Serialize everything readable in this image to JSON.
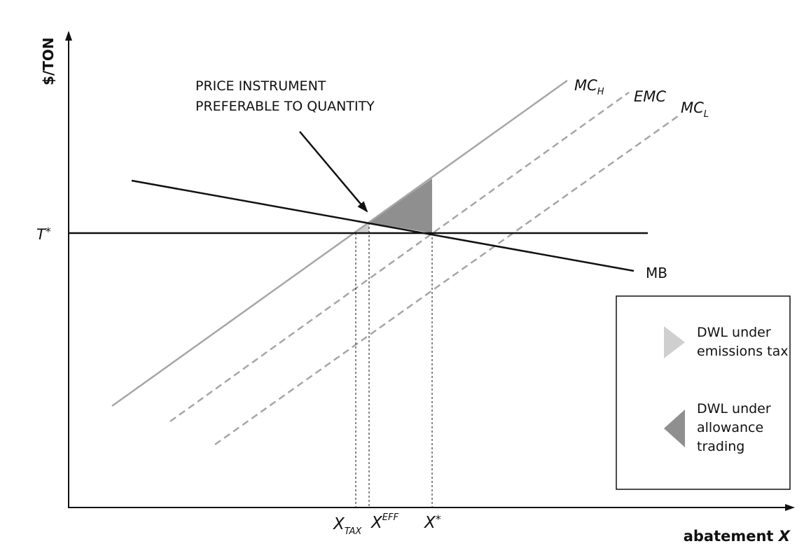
{
  "axes": {
    "y_label": "$/TON",
    "x_label_text": "abatement ",
    "x_label_var": "X"
  },
  "price_level": {
    "base": "T",
    "mark": "*"
  },
  "curves": {
    "mc_h": {
      "base": "MC",
      "sub": "H",
      "color": "#a6a6a6",
      "style": "solid"
    },
    "emc": {
      "base": "EMC",
      "color": "#a6a6a6",
      "style": "dashed"
    },
    "mc_l": {
      "base": "MC",
      "sub": "L",
      "color": "#a6a6a6",
      "style": "dashed"
    },
    "mb": {
      "base": "MB",
      "color": "#111111",
      "style": "solid"
    }
  },
  "annotation": {
    "line1": "PRICE INSTRUMENT",
    "line2": "PREFERABLE TO QUANTITY"
  },
  "x_ticks": {
    "x_tax": {
      "base": "X",
      "sub": "TAX"
    },
    "x_eff": {
      "base": "X",
      "sup": "EFF"
    },
    "x_star": {
      "base": "X",
      "mark": "*"
    }
  },
  "legend": {
    "tax": {
      "line1": "DWL under",
      "line2": "emissions tax",
      "color": "#cfcfcf"
    },
    "trading": {
      "line1": "DWL under",
      "line2": "allowance",
      "line3": "trading",
      "color": "#8f8f8f"
    }
  }
}
